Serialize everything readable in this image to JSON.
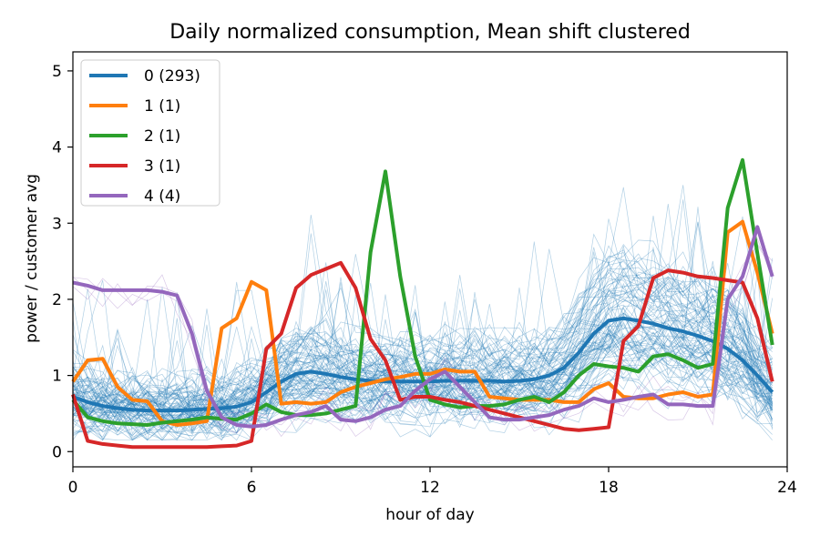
{
  "chart_data": {
    "type": "line",
    "title": "Daily normalized consumption, Mean shift clustered",
    "xlabel": "hour of day",
    "ylabel": "power / customer avg",
    "xlim": [
      0,
      24
    ],
    "ylim": [
      -0.2,
      5.25
    ],
    "xticks": [
      "0",
      "6",
      "12",
      "18",
      "24"
    ],
    "yticks": [
      "0",
      "1",
      "2",
      "3",
      "4",
      "5"
    ],
    "grid": false,
    "legend_position": "top-left",
    "x": [
      0,
      0.5,
      1,
      1.5,
      2,
      2.5,
      3,
      3.5,
      4,
      4.5,
      5,
      5.5,
      6,
      6.5,
      7,
      7.5,
      8,
      8.5,
      9,
      9.5,
      10,
      10.5,
      11,
      11.5,
      12,
      12.5,
      13,
      13.5,
      14,
      14.5,
      15,
      15.5,
      16,
      16.5,
      17,
      17.5,
      18,
      18.5,
      19,
      19.5,
      20,
      20.5,
      21,
      21.5,
      22,
      22.5,
      23,
      23.5
    ],
    "series": [
      {
        "name": "0 (293)",
        "color": "#1f77b4",
        "values": [
          0.72,
          0.65,
          0.6,
          0.57,
          0.55,
          0.54,
          0.54,
          0.54,
          0.55,
          0.56,
          0.57,
          0.59,
          0.65,
          0.78,
          0.92,
          1.02,
          1.05,
          1.02,
          0.98,
          0.95,
          0.93,
          0.92,
          0.92,
          0.92,
          0.92,
          0.93,
          0.93,
          0.93,
          0.93,
          0.92,
          0.93,
          0.95,
          1.0,
          1.1,
          1.3,
          1.55,
          1.72,
          1.75,
          1.72,
          1.68,
          1.62,
          1.58,
          1.52,
          1.45,
          1.35,
          1.2,
          1.0,
          0.78
        ]
      },
      {
        "name": "1 (1)",
        "color": "#ff7f0e",
        "values": [
          0.92,
          1.2,
          1.22,
          0.85,
          0.68,
          0.66,
          0.4,
          0.35,
          0.37,
          0.4,
          1.62,
          1.75,
          2.23,
          2.12,
          0.63,
          0.65,
          0.63,
          0.65,
          0.78,
          0.85,
          0.9,
          0.95,
          0.98,
          1.02,
          1.02,
          1.08,
          1.05,
          1.05,
          0.72,
          0.7,
          0.68,
          0.68,
          0.68,
          0.65,
          0.65,
          0.82,
          0.9,
          0.72,
          0.7,
          0.7,
          0.75,
          0.78,
          0.72,
          0.75,
          2.88,
          3.02,
          2.35,
          1.55
        ]
      },
      {
        "name": "2 (1)",
        "color": "#2ca02c",
        "values": [
          0.68,
          0.45,
          0.4,
          0.37,
          0.36,
          0.35,
          0.38,
          0.4,
          0.42,
          0.45,
          0.43,
          0.42,
          0.5,
          0.62,
          0.52,
          0.48,
          0.48,
          0.5,
          0.55,
          0.6,
          2.62,
          3.68,
          2.3,
          1.25,
          0.68,
          0.62,
          0.58,
          0.6,
          0.6,
          0.62,
          0.68,
          0.72,
          0.65,
          0.78,
          1.0,
          1.15,
          1.12,
          1.1,
          1.05,
          1.25,
          1.28,
          1.2,
          1.1,
          1.15,
          3.2,
          3.83,
          2.6,
          1.4
        ]
      },
      {
        "name": "3 (1)",
        "color": "#d62728",
        "values": [
          0.75,
          0.14,
          0.1,
          0.08,
          0.06,
          0.06,
          0.06,
          0.06,
          0.06,
          0.06,
          0.07,
          0.08,
          0.14,
          1.35,
          1.55,
          2.15,
          2.32,
          2.4,
          2.48,
          2.15,
          1.48,
          1.2,
          0.68,
          0.72,
          0.72,
          0.68,
          0.65,
          0.6,
          0.55,
          0.5,
          0.45,
          0.4,
          0.35,
          0.3,
          0.28,
          0.3,
          0.32,
          1.45,
          1.65,
          2.28,
          2.38,
          2.35,
          2.3,
          2.28,
          2.25,
          2.22,
          1.75,
          0.92
        ]
      },
      {
        "name": "4 (4)",
        "color": "#9467bd",
        "values": [
          2.22,
          2.18,
          2.12,
          2.12,
          2.12,
          2.12,
          2.1,
          2.05,
          1.55,
          0.8,
          0.45,
          0.35,
          0.33,
          0.35,
          0.42,
          0.48,
          0.52,
          0.6,
          0.42,
          0.4,
          0.45,
          0.55,
          0.6,
          0.8,
          0.95,
          1.05,
          0.85,
          0.65,
          0.45,
          0.42,
          0.42,
          0.45,
          0.48,
          0.55,
          0.6,
          0.7,
          0.65,
          0.68,
          0.72,
          0.75,
          0.62,
          0.62,
          0.6,
          0.6,
          2.0,
          2.3,
          2.95,
          2.3
        ]
      }
    ]
  }
}
